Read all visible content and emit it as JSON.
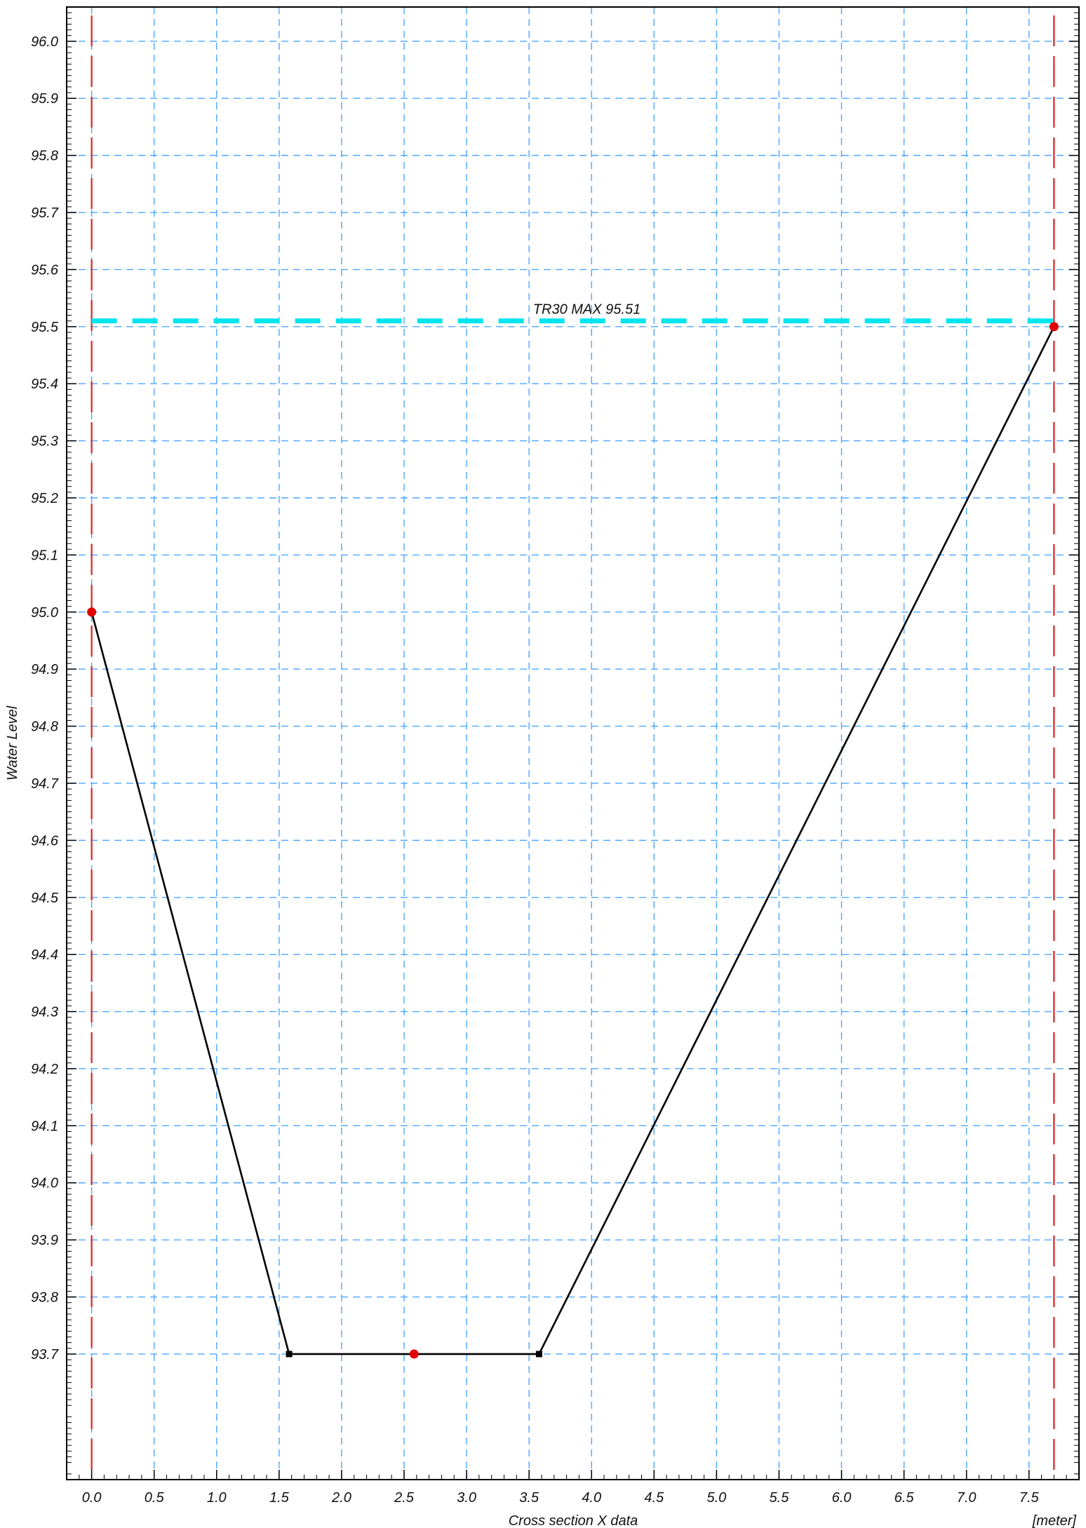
{
  "chart_data": {
    "type": "line",
    "title": "",
    "xlabel": "Cross section X data",
    "xunit": "[meter]",
    "ylabel": "Water Level",
    "xlim": [
      -0.2,
      7.9
    ],
    "ylim": [
      93.48,
      96.06
    ],
    "grid": true,
    "x_ticks": [
      "0.0",
      "0.5",
      "1.0",
      "1.5",
      "2.0",
      "2.5",
      "3.0",
      "3.5",
      "4.0",
      "4.5",
      "5.0",
      "5.5",
      "6.0",
      "6.5",
      "7.0",
      "7.5"
    ],
    "y_ticks": [
      "93.7",
      "93.8",
      "93.9",
      "94.0",
      "94.1",
      "94.2",
      "94.3",
      "94.4",
      "94.5",
      "94.6",
      "94.7",
      "94.8",
      "94.9",
      "95.0",
      "95.1",
      "95.2",
      "95.3",
      "95.4",
      "95.5",
      "95.6",
      "95.7",
      "95.8",
      "95.9",
      "96.0"
    ],
    "series": [
      {
        "color": "#000000",
        "x": [
          0.0,
          1.58,
          2.58,
          3.58,
          7.7
        ],
        "y": [
          95.0,
          93.7,
          93.7,
          93.7,
          95.5
        ]
      }
    ],
    "markers": {
      "red_points": [
        {
          "x": 0.0,
          "y": 95.0
        },
        {
          "x": 2.58,
          "y": 93.7
        },
        {
          "x": 7.7,
          "y": 95.5
        }
      ],
      "black_squares": [
        {
          "x": 1.58,
          "y": 93.7
        },
        {
          "x": 3.58,
          "y": 93.7
        }
      ]
    },
    "vertical_lines": [
      {
        "x": 0.0,
        "color": "#e02020"
      },
      {
        "x": 7.7,
        "color": "#e02020"
      }
    ],
    "water_level": {
      "label": "TR30 MAX  95.51",
      "y": 95.51,
      "x_start": 0.0,
      "x_end": 7.7,
      "color": "#00e5ee"
    },
    "colors": {
      "grid": "#4da6ff",
      "profile": "#000000",
      "marker": "#e00000",
      "bank": "#e02020",
      "water": "#00e5ee"
    }
  }
}
